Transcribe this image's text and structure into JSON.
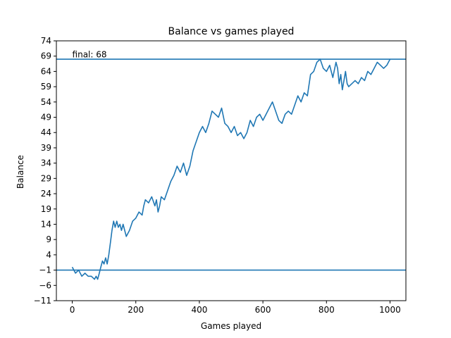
{
  "chart_data": {
    "type": "line",
    "title": "Balance vs games played",
    "xlabel": "Games played",
    "ylabel": "Balance",
    "xlim": [
      -50,
      1050
    ],
    "ylim": [
      -11,
      74
    ],
    "xticks": [
      0,
      200,
      400,
      600,
      800,
      1000
    ],
    "yticks": [
      -11,
      -6,
      -1,
      4,
      9,
      14,
      19,
      24,
      29,
      34,
      39,
      44,
      49,
      54,
      59,
      64,
      69,
      74
    ],
    "grid": false,
    "colors": {
      "line": "#1f77b4"
    },
    "hlines": [
      -1,
      68
    ],
    "annotation": {
      "text": "final: 68",
      "x": 0,
      "y": 69.5
    },
    "series": [
      {
        "x": [
          0,
          10,
          20,
          30,
          40,
          50,
          60,
          70,
          75,
          80,
          85,
          90,
          95,
          100,
          105,
          110,
          115,
          120,
          125,
          130,
          135,
          140,
          145,
          150,
          155,
          160,
          170,
          180,
          190,
          200,
          210,
          220,
          225,
          230,
          240,
          250,
          260,
          265,
          270,
          275,
          280,
          290,
          300,
          310,
          320,
          330,
          340,
          350,
          360,
          370,
          380,
          390,
          400,
          410,
          420,
          430,
          440,
          450,
          460,
          470,
          480,
          490,
          500,
          510,
          520,
          530,
          540,
          550,
          560,
          570,
          580,
          590,
          600,
          610,
          620,
          630,
          640,
          650,
          660,
          670,
          680,
          690,
          700,
          710,
          720,
          730,
          740,
          750,
          760,
          770,
          780,
          790,
          800,
          810,
          820,
          830,
          835,
          840,
          845,
          850,
          855,
          860,
          865,
          870,
          880,
          890,
          900,
          910,
          920,
          930,
          940,
          950,
          960,
          970,
          980,
          990,
          1000
        ],
        "y": [
          0,
          -2,
          -1,
          -3,
          -2,
          -3,
          -3,
          -4,
          -3,
          -4,
          -2,
          0,
          2,
          1,
          3,
          1,
          4,
          8,
          12,
          15,
          13,
          15,
          13,
          14,
          12,
          14,
          10,
          12,
          15,
          16,
          18,
          17,
          20,
          22,
          21,
          23,
          20,
          22,
          18,
          20,
          23,
          22,
          25,
          28,
          30,
          33,
          31,
          34,
          30,
          33,
          38,
          41,
          44,
          46,
          44,
          47,
          51,
          50,
          49,
          52,
          47,
          46,
          44,
          46,
          43,
          44,
          42,
          44,
          48,
          46,
          49,
          50,
          48,
          50,
          52,
          54,
          51,
          48,
          47,
          50,
          51,
          50,
          53,
          56,
          54,
          57,
          56,
          63,
          64,
          67,
          68,
          65,
          64,
          66,
          62,
          67,
          65,
          60,
          63,
          58,
          61,
          64,
          60,
          59,
          60,
          61,
          60,
          62,
          61,
          64,
          63,
          65,
          67,
          66,
          65,
          66,
          68
        ]
      }
    ]
  }
}
